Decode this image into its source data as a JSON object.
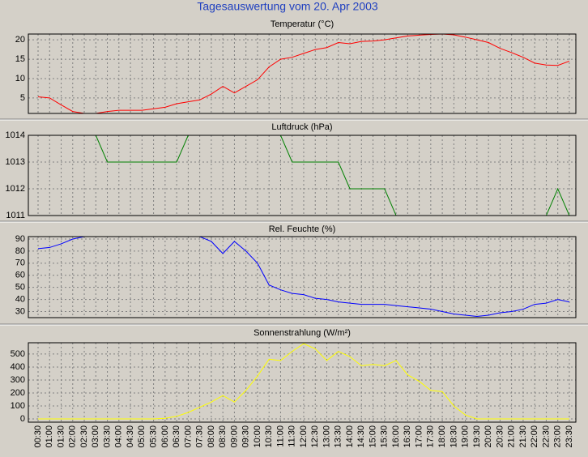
{
  "title": "Tagesauswertung vom 20. Apr 2003",
  "chart_data": [
    {
      "type": "line",
      "title": "Temperatur (°C)",
      "color": "#ff0000",
      "ylim": [
        1,
        21.5
      ],
      "yticks": [
        5,
        10,
        15,
        20
      ],
      "grid": true,
      "values": [
        5.3,
        5.0,
        3.2,
        1.5,
        1.0,
        1.0,
        1.5,
        1.8,
        1.8,
        1.8,
        2.2,
        2.6,
        3.5,
        4.0,
        4.5,
        6.0,
        8.0,
        6.3,
        8.0,
        9.7,
        13,
        15,
        15.5,
        16.5,
        17.5,
        18,
        19.3,
        19,
        19.6,
        19.7,
        20,
        20.5,
        21,
        21.2,
        21.4,
        21.5,
        21.3,
        20.7,
        20,
        19.3,
        17.8,
        16.7,
        15.5,
        14,
        13.5,
        13.4,
        14.5
      ]
    },
    {
      "type": "line",
      "title": "Luftdruck (hPa)",
      "color": "#008000",
      "ylim": [
        1011,
        1014
      ],
      "yticks": [
        1011,
        1012,
        1013,
        1014
      ],
      "grid": true,
      "values": [
        1014,
        1014,
        1014,
        1014,
        1014,
        1014,
        1013,
        1013,
        1013,
        1013,
        1013,
        1013,
        1013,
        1014,
        1014,
        1014,
        1014,
        1014,
        1014,
        1014,
        1014,
        1014,
        1013,
        1013,
        1013,
        1013,
        1013,
        1012,
        1012,
        1012,
        1012,
        1011,
        1011,
        1011,
        1011,
        1011,
        1011,
        1011,
        1011,
        1011,
        1011,
        1011,
        1011,
        1011,
        1011,
        1012,
        1011
      ]
    },
    {
      "type": "line",
      "title": "Rel. Feuchte (%)",
      "color": "#0000ff",
      "ylim": [
        25,
        92
      ],
      "yticks": [
        30,
        40,
        50,
        60,
        70,
        80,
        90
      ],
      "grid": true,
      "values": [
        82,
        83,
        86,
        90,
        92,
        92,
        92,
        92,
        92,
        92,
        92,
        92,
        92,
        92,
        92,
        88,
        78,
        88,
        80,
        70,
        52,
        48,
        45,
        44,
        41,
        40,
        38,
        37,
        36,
        36,
        36,
        35,
        34,
        33,
        32,
        30,
        28,
        27,
        26,
        27,
        29,
        30,
        32,
        36,
        37,
        40,
        38
      ]
    },
    {
      "type": "line",
      "title": "Sonnenstrahlung (W/m²)",
      "color": "#ffff00",
      "ylim": [
        -25,
        587
      ],
      "yticks": [
        0,
        100,
        200,
        300,
        400,
        500
      ],
      "grid": true,
      "categories": [
        "00:30",
        "01:00",
        "01:30",
        "02:00",
        "02:30",
        "03:00",
        "03:30",
        "04:00",
        "04:30",
        "05:00",
        "05:30",
        "06:00",
        "06:30",
        "07:00",
        "07:30",
        "08:00",
        "08:30",
        "09:00",
        "09:30",
        "10:00",
        "10:30",
        "11:00",
        "11:30",
        "12:00",
        "12:30",
        "13:00",
        "13:30",
        "14:00",
        "14:30",
        "15:00",
        "15:30",
        "16:00",
        "16:30",
        "17:00",
        "17:30",
        "18:00",
        "18:30",
        "19:00",
        "19:30",
        "20:00",
        "20:30",
        "21:00",
        "21:30",
        "22:00",
        "22:30",
        "23:00",
        "23:30"
      ],
      "values": [
        0,
        0,
        0,
        0,
        0,
        0,
        0,
        0,
        0,
        0,
        0,
        5,
        20,
        50,
        90,
        130,
        180,
        130,
        220,
        330,
        460,
        450,
        520,
        580,
        540,
        450,
        520,
        480,
        410,
        420,
        410,
        450,
        340,
        290,
        220,
        210,
        100,
        30,
        0,
        0,
        0,
        0,
        0,
        0,
        0,
        0,
        0
      ]
    }
  ]
}
